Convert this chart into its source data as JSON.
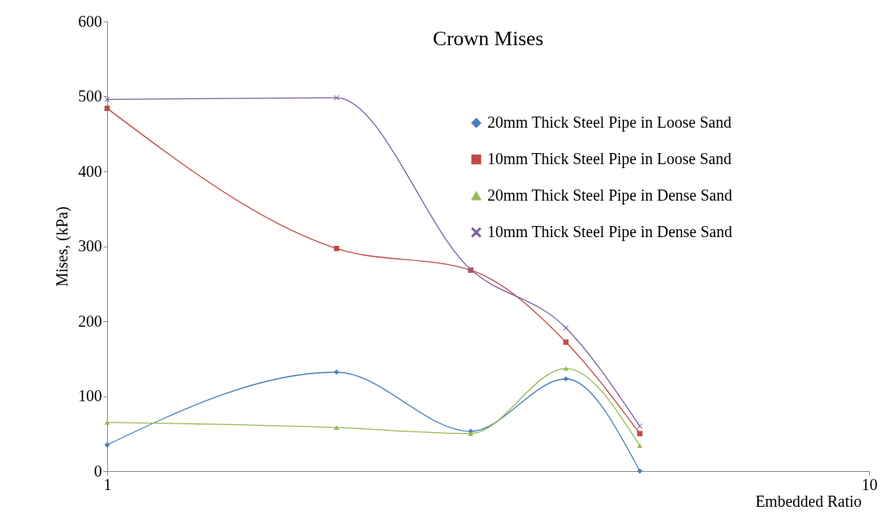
{
  "chart_data": {
    "type": "line",
    "title": "Crown Mises",
    "xlabel": "Embedded Ratio",
    "ylabel": "Mises, (kPa)",
    "x": [
      1,
      2,
      3,
      4,
      5
    ],
    "series": [
      {
        "name": "20mm Thick Steel Pipe in  Loose Sand",
        "color": "#4a7ebb",
        "marker": "diamond",
        "values": [
          35,
          132,
          53,
          123,
          0
        ]
      },
      {
        "name": "10mm Thick Steel Pipe in  Loose Sand",
        "color": "#be4b48",
        "marker": "square",
        "values": [
          484,
          297,
          268,
          172,
          50
        ]
      },
      {
        "name": "20mm Thick Steel Pipe in Dense Sand",
        "color": "#98b954",
        "marker": "triangle",
        "values": [
          65,
          58,
          50,
          137,
          34
        ]
      },
      {
        "name": "10mm Thick Steel Pipe in Dense Sand",
        "color": "#7d60a0",
        "marker": "cross",
        "values": [
          496,
          498,
          269,
          191,
          60
        ]
      }
    ],
    "log": "x",
    "xlim": [
      1,
      10
    ],
    "xticks": [
      1,
      10
    ],
    "ylim": [
      0,
      600
    ],
    "yticks": [
      0,
      100,
      200,
      300,
      400,
      500,
      600
    ],
    "grid": false,
    "legend": "right",
    "line_style": "solid"
  }
}
